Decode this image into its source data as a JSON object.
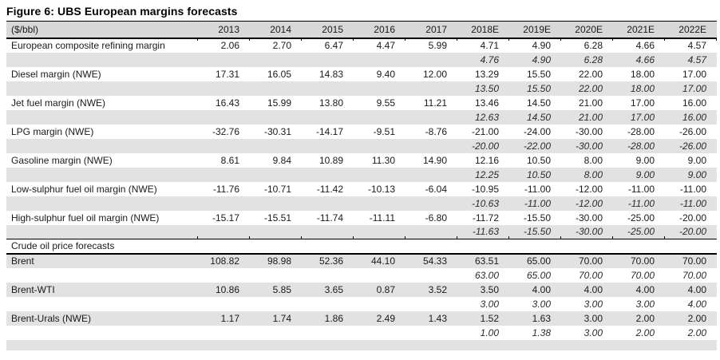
{
  "title": "Figure 6: UBS European margins forecasts",
  "colors": {
    "header_bg": "#d8d8d8",
    "stripe_bg": "#e2e2e2",
    "border": "#000000",
    "text": "#1a1a1a"
  },
  "table": {
    "unit_label": "($/bbl)",
    "columns": [
      "2013",
      "2014",
      "2015",
      "2016",
      "2017",
      "2018E",
      "2019E",
      "2020E",
      "2021E",
      "2022E"
    ],
    "rows": [
      {
        "label": "European composite refining margin",
        "values": [
          "2.06",
          "2.70",
          "6.47",
          "4.47",
          "5.99",
          "4.71",
          "4.90",
          "6.28",
          "4.66",
          "4.57"
        ],
        "sub": [
          "",
          "",
          "",
          "",
          "",
          "4.76",
          "4.90",
          "6.28",
          "4.66",
          "4.57"
        ]
      },
      {
        "label": "Diesel margin (NWE)",
        "values": [
          "17.31",
          "16.05",
          "14.83",
          "9.40",
          "12.00",
          "13.29",
          "15.50",
          "22.00",
          "18.00",
          "17.00"
        ],
        "sub": [
          "",
          "",
          "",
          "",
          "",
          "13.50",
          "15.50",
          "22.00",
          "18.00",
          "17.00"
        ]
      },
      {
        "label": "Jet fuel margin (NWE)",
        "values": [
          "16.43",
          "15.99",
          "13.80",
          "9.55",
          "11.21",
          "13.46",
          "14.50",
          "21.00",
          "17.00",
          "16.00"
        ],
        "sub": [
          "",
          "",
          "",
          "",
          "",
          "12.63",
          "14.50",
          "21.00",
          "17.00",
          "16.00"
        ]
      },
      {
        "label": "LPG margin (NWE)",
        "values": [
          "-32.76",
          "-30.31",
          "-14.17",
          "-9.51",
          "-8.76",
          "-21.00",
          "-24.00",
          "-30.00",
          "-28.00",
          "-26.00"
        ],
        "sub": [
          "",
          "",
          "",
          "",
          "",
          "-20.00",
          "-22.00",
          "-30.00",
          "-28.00",
          "-26.00"
        ]
      },
      {
        "label": "Gasoline margin (NWE)",
        "values": [
          "8.61",
          "9.84",
          "10.89",
          "11.30",
          "14.90",
          "12.16",
          "10.50",
          "8.00",
          "9.00",
          "9.00"
        ],
        "sub": [
          "",
          "",
          "",
          "",
          "",
          "12.25",
          "10.50",
          "8.00",
          "9.00",
          "9.00"
        ]
      },
      {
        "label": "Low-sulphur fuel oil margin (NWE)",
        "values": [
          "-11.76",
          "-10.71",
          "-11.42",
          "-10.13",
          "-6.04",
          "-10.95",
          "-11.00",
          "-12.00",
          "-11.00",
          "-11.00"
        ],
        "sub": [
          "",
          "",
          "",
          "",
          "",
          "-10.63",
          "-11.00",
          "-12.00",
          "-11.00",
          "-11.00"
        ]
      },
      {
        "label": "High-sulphur fuel oil margin (NWE)",
        "values": [
          "-15.17",
          "-15.51",
          "-11.74",
          "-11.11",
          "-6.80",
          "-11.72",
          "-15.50",
          "-30.00",
          "-25.00",
          "-20.00"
        ],
        "sub": [
          "",
          "",
          "",
          "",
          "",
          "-11.63",
          "-15.50",
          "-30.00",
          "-25.00",
          "-20.00"
        ]
      },
      {
        "section": "Crude oil price forecasts"
      },
      {
        "label": "Brent",
        "values": [
          "108.82",
          "98.98",
          "52.36",
          "44.10",
          "54.33",
          "63.51",
          "65.00",
          "70.00",
          "70.00",
          "70.00"
        ],
        "sub": [
          "",
          "",
          "",
          "",
          "",
          "63.00",
          "65.00",
          "70.00",
          "70.00",
          "70.00"
        ]
      },
      {
        "label": "Brent-WTI",
        "values": [
          "10.86",
          "5.85",
          "3.65",
          "0.87",
          "3.52",
          "3.50",
          "4.00",
          "4.00",
          "4.00",
          "4.00"
        ],
        "sub": [
          "",
          "",
          "",
          "",
          "",
          "3.00",
          "3.00",
          "3.00",
          "3.00",
          "4.00"
        ]
      },
      {
        "label": "Brent-Urals (NWE)",
        "values": [
          "1.17",
          "1.74",
          "1.86",
          "2.49",
          "1.43",
          "1.52",
          "1.63",
          "3.00",
          "2.00",
          "2.00"
        ],
        "sub": [
          "",
          "",
          "",
          "",
          "",
          "1.00",
          "1.38",
          "3.00",
          "2.00",
          "2.00"
        ]
      }
    ]
  }
}
